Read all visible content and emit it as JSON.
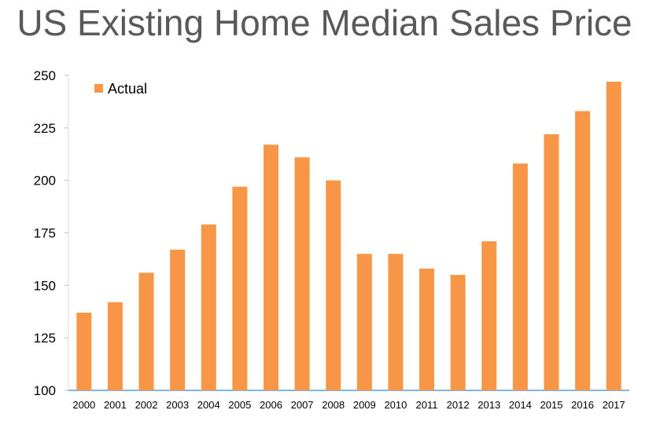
{
  "chart_data": {
    "type": "bar",
    "title": "US Existing Home Median Sales Price",
    "xlabel": "",
    "ylabel": "",
    "categories": [
      "2000",
      "2001",
      "2002",
      "2003",
      "2004",
      "2005",
      "2006",
      "2007",
      "2008",
      "2009",
      "2010",
      "2011",
      "2012",
      "2013",
      "2014",
      "2015",
      "2016",
      "2017"
    ],
    "series": [
      {
        "name": "Actual",
        "color": "#F79646",
        "values": [
          137,
          142,
          156,
          167,
          179,
          197,
          217,
          211,
          200,
          165,
          165,
          158,
          155,
          171,
          208,
          222,
          233,
          247
        ]
      }
    ],
    "ylim": [
      100,
      250
    ],
    "yticks": [
      100,
      125,
      150,
      175,
      200,
      225,
      250
    ],
    "grid": false,
    "legend_position": "top-left",
    "axis_color": "#5B9BD5"
  }
}
